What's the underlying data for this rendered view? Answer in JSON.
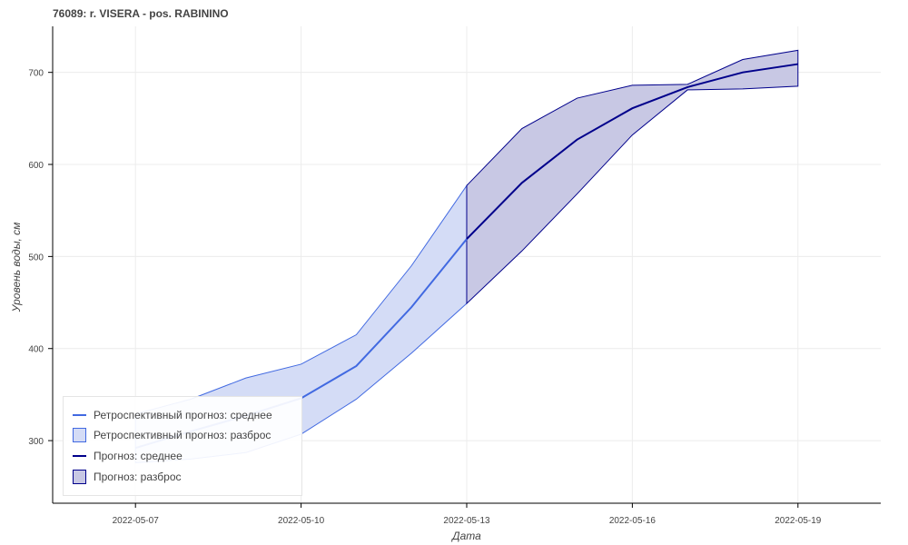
{
  "title": "76089: r. VISERA - pos. RABININO",
  "colors": {
    "retro_line": "#4169e1",
    "retro_fill": "#d4dcf6",
    "forecast_line": "#00008b",
    "forecast_fill": "#c8c8e4",
    "grid": "#ececec",
    "axis": "#000000"
  },
  "legend": {
    "items": [
      {
        "label": "Ретроспективный прогноз: среднее",
        "kind": "line",
        "color": "#4169e1"
      },
      {
        "label": "Ретроспективный прогноз: разброс",
        "kind": "box",
        "color": "#d4dcf6",
        "border": "#4169e1"
      },
      {
        "label": "Прогноз: среднее",
        "kind": "line",
        "color": "#00008b"
      },
      {
        "label": "Прогноз: разброс",
        "kind": "box",
        "color": "#c8c8e4",
        "border": "#00008b"
      }
    ],
    "placement": "bottom-left"
  },
  "chart_data": {
    "type": "area",
    "title": "76089: r. VISERA - pos. RABININO",
    "xlabel": "Дата",
    "ylabel": "Уровень воды, см",
    "xlim": [
      "2022-05-05T12:00",
      "2022-05-20T12:00"
    ],
    "ylim": [
      232,
      750
    ],
    "x_ticks": [
      "2022-05-07",
      "2022-05-10",
      "2022-05-13",
      "2022-05-16",
      "2022-05-19"
    ],
    "y_ticks": [
      300,
      400,
      500,
      600,
      700
    ],
    "grid": true,
    "series": [
      {
        "name": "Ретроспективный прогноз: среднее",
        "kind": "line",
        "x": [
          "2022-05-07",
          "2022-05-08",
          "2022-05-09",
          "2022-05-10",
          "2022-05-11",
          "2022-05-12",
          "2022-05-13"
        ],
        "y": [
          292,
          310,
          327,
          346,
          381,
          445,
          519
        ]
      },
      {
        "name": "Ретроспективный прогноз: разброс",
        "kind": "band",
        "x": [
          "2022-05-07",
          "2022-05-08",
          "2022-05-09",
          "2022-05-10",
          "2022-05-11",
          "2022-05-12",
          "2022-05-13"
        ],
        "lower": [
          276,
          280,
          287,
          307,
          345,
          395,
          449
        ],
        "upper": [
          329,
          345,
          368,
          383,
          415,
          490,
          577
        ]
      },
      {
        "name": "Прогноз: среднее",
        "kind": "line",
        "x": [
          "2022-05-13",
          "2022-05-14",
          "2022-05-15",
          "2022-05-16",
          "2022-05-17",
          "2022-05-18",
          "2022-05-19"
        ],
        "y": [
          519,
          580,
          627,
          661,
          684,
          700,
          709
        ]
      },
      {
        "name": "Прогноз: разброс",
        "kind": "band",
        "x": [
          "2022-05-13",
          "2022-05-14",
          "2022-05-15",
          "2022-05-16",
          "2022-05-17",
          "2022-05-18",
          "2022-05-19"
        ],
        "lower": [
          449,
          506,
          568,
          632,
          681,
          682,
          685
        ],
        "upper": [
          577,
          639,
          672,
          686,
          687,
          714,
          724
        ]
      }
    ]
  }
}
